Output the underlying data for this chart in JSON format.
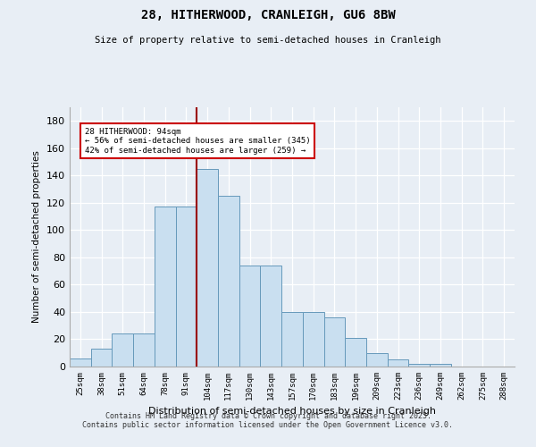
{
  "title_line1": "28, HITHERWOOD, CRANLEIGH, GU6 8BW",
  "title_line2": "Size of property relative to semi-detached houses in Cranleigh",
  "xlabel": "Distribution of semi-detached houses by size in Cranleigh",
  "ylabel": "Number of semi-detached properties",
  "categories": [
    "25sqm",
    "38sqm",
    "51sqm",
    "64sqm",
    "78sqm",
    "91sqm",
    "104sqm",
    "117sqm",
    "130sqm",
    "143sqm",
    "157sqm",
    "170sqm",
    "183sqm",
    "196sqm",
    "209sqm",
    "223sqm",
    "236sqm",
    "249sqm",
    "262sqm",
    "275sqm",
    "288sqm"
  ],
  "values": [
    6,
    13,
    24,
    24,
    117,
    117,
    145,
    125,
    74,
    74,
    40,
    40,
    36,
    21,
    10,
    5,
    2,
    2,
    0,
    0,
    0
  ],
  "bar_color": "#c9dff0",
  "bar_edge_color": "#6699bb",
  "vline_x": 5.5,
  "vline_color": "#990000",
  "annotation_title": "28 HITHERWOOD: 94sqm",
  "annotation_line2": "← 56% of semi-detached houses are smaller (345)",
  "annotation_line3": "42% of semi-detached houses are larger (259) →",
  "annotation_box_color": "#ffffff",
  "annotation_box_edge": "#cc0000",
  "ylim": [
    0,
    190
  ],
  "yticks": [
    0,
    20,
    40,
    60,
    80,
    100,
    120,
    140,
    160,
    180
  ],
  "footer_line1": "Contains HM Land Registry data © Crown copyright and database right 2025.",
  "footer_line2": "Contains public sector information licensed under the Open Government Licence v3.0.",
  "bg_color": "#e8eef5",
  "plot_bg_color": "#e8eef5"
}
